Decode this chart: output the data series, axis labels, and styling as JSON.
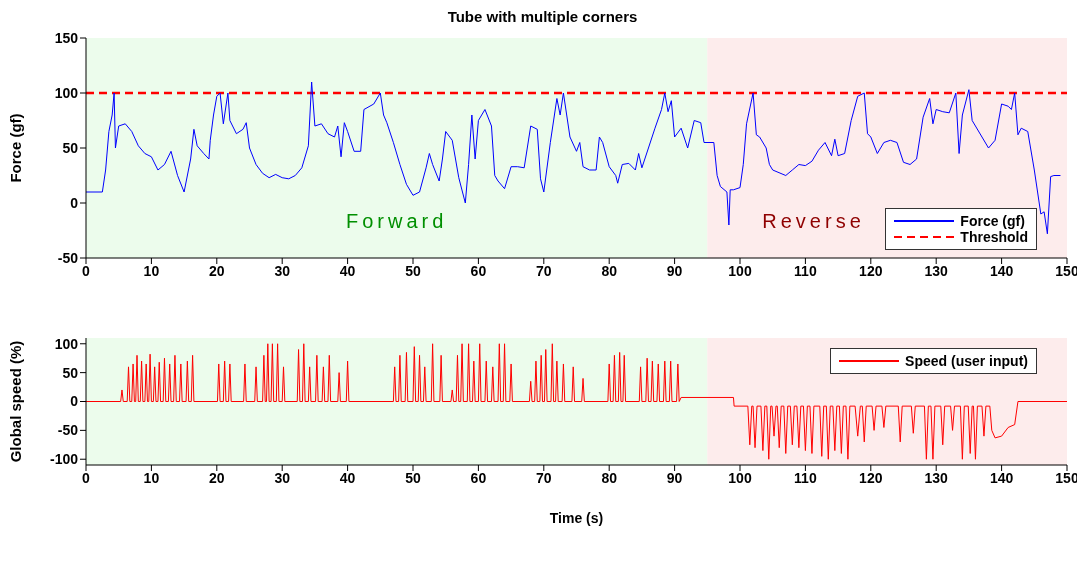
{
  "chart_data": [
    {
      "type": "line",
      "title": "Tube with multiple corners",
      "ylabel": "Force (gf)",
      "xlim": [
        0,
        150
      ],
      "xticks": [
        0,
        10,
        20,
        30,
        40,
        50,
        60,
        70,
        80,
        90,
        100,
        110,
        120,
        130,
        140,
        150
      ],
      "ylim": [
        -50,
        150
      ],
      "yticks": [
        -50,
        0,
        50,
        100,
        150
      ],
      "legend": "bottom right",
      "marker": "none",
      "line_style": "solid",
      "series": [
        {
          "name": "Force (gf)",
          "color": "#0000ff",
          "x": [
            0,
            2.5,
            3,
            3.5,
            4,
            4.3,
            4.5,
            5,
            6,
            7,
            8,
            9,
            10,
            11,
            12,
            13,
            14,
            15,
            16,
            16.5,
            17,
            18,
            18.8,
            19,
            19.5,
            20,
            20.5,
            21,
            21.7,
            22,
            23,
            24,
            24.5,
            25,
            26,
            27,
            28,
            29,
            30,
            31,
            32,
            33,
            34,
            34.5,
            35,
            36,
            37,
            38,
            38.5,
            39,
            39.5,
            40,
            41,
            42,
            42.5,
            44,
            45,
            45.5,
            46,
            47,
            48,
            49,
            50,
            51,
            52,
            52.5,
            53,
            54,
            54.5,
            55,
            56,
            57,
            58,
            58.5,
            59,
            59.5,
            60,
            61,
            62,
            62.5,
            63,
            64,
            65,
            66,
            67,
            68,
            69,
            69.5,
            70,
            71,
            72,
            72.5,
            73,
            74,
            75,
            75.5,
            76,
            77,
            78,
            78.5,
            79,
            80,
            81,
            81.3,
            82,
            83,
            84,
            84.5,
            85,
            86,
            87,
            88,
            88.5,
            89,
            89.5,
            90,
            91,
            92,
            93,
            94,
            94.5,
            96,
            96.5,
            97,
            98,
            98.3,
            98.5,
            99,
            100,
            100.5,
            101,
            102,
            102.5,
            103,
            104,
            104.5,
            105,
            107,
            108,
            109,
            110,
            111,
            112,
            113,
            114,
            114.5,
            115,
            116,
            117,
            118,
            119,
            119.5,
            120,
            121,
            122,
            123,
            124,
            125,
            126,
            127,
            128,
            129,
            129.5,
            130,
            131,
            132,
            133,
            133.5,
            134,
            135,
            135.5,
            136,
            137,
            138,
            139,
            140,
            141,
            141.5,
            142,
            142.5,
            143,
            144,
            145,
            146,
            146.5,
            147,
            147.5,
            148,
            149
          ],
          "values": [
            10,
            10,
            30,
            65,
            80,
            100,
            50,
            70,
            72,
            65,
            52,
            45,
            42,
            30,
            35,
            47,
            25,
            10,
            40,
            67,
            52,
            45,
            40,
            57,
            80,
            97,
            100,
            72,
            100,
            75,
            63,
            67,
            73,
            50,
            35,
            27,
            23,
            26,
            23,
            22,
            25,
            32,
            52,
            110,
            70,
            72,
            63,
            60,
            70,
            42,
            73,
            65,
            47,
            47,
            85,
            90,
            100,
            80,
            73,
            55,
            35,
            17,
            7,
            10,
            32,
            45,
            35,
            20,
            40,
            65,
            57,
            23,
            0,
            35,
            80,
            40,
            75,
            85,
            70,
            25,
            20,
            13,
            33,
            33,
            32,
            70,
            67,
            22,
            10,
            55,
            95,
            80,
            100,
            60,
            47,
            55,
            33,
            30,
            30,
            60,
            55,
            33,
            25,
            18,
            35,
            36,
            30,
            45,
            32,
            50,
            68,
            85,
            100,
            83,
            93,
            60,
            68,
            50,
            75,
            73,
            55,
            55,
            25,
            15,
            10,
            -20,
            12,
            12,
            14,
            35,
            72,
            100,
            62,
            60,
            50,
            35,
            30,
            25,
            30,
            35,
            34,
            38,
            48,
            55,
            43,
            58,
            43,
            45,
            75,
            97,
            100,
            63,
            60,
            45,
            55,
            57,
            55,
            37,
            35,
            40,
            78,
            95,
            72,
            85,
            83,
            82,
            100,
            45,
            80,
            103,
            75,
            70,
            60,
            50,
            57,
            90,
            88,
            85,
            100,
            62,
            68,
            65,
            30,
            -10,
            -8,
            -28,
            24,
            25,
            25
          ]
        }
      ],
      "ref_lines": [
        {
          "axis": "y",
          "value": 100,
          "label": "Threshold",
          "color": "#ff0000",
          "line_style": "dashed"
        }
      ],
      "bands": [
        {
          "axis": "x",
          "from": 0,
          "to": 95,
          "label": "Forward",
          "color": "#ecfcec"
        },
        {
          "axis": "x",
          "from": 95,
          "to": 150,
          "label": "Reverse",
          "color": "#fdecec"
        }
      ]
    },
    {
      "type": "line",
      "xlabel": "Time (s)",
      "ylabel": "Global speed (%)",
      "xlim": [
        0,
        150
      ],
      "xticks": [
        0,
        10,
        20,
        30,
        40,
        50,
        60,
        70,
        80,
        90,
        100,
        110,
        120,
        130,
        140,
        150
      ],
      "ylim": [
        -110,
        110
      ],
      "yticks": [
        -100,
        -50,
        0,
        50,
        100
      ],
      "legend": "top right",
      "marker": "none",
      "line_style": "solid",
      "series": [
        {
          "name": "Speed (user input)",
          "color": "#ff0000",
          "x": [
            0,
            5.3,
            5.5,
            5.7,
            6.3,
            6.5,
            6.7,
            7,
            7.2,
            7.4,
            7.6,
            7.8,
            8,
            8.3,
            8.5,
            8.7,
            9,
            9.2,
            9.4,
            9.6,
            9.8,
            10,
            10.3,
            10.5,
            10.7,
            11,
            11.2,
            11.4,
            11.8,
            12,
            12.2,
            12.6,
            12.8,
            13,
            13.4,
            13.6,
            13.8,
            14.3,
            14.5,
            14.7,
            15.3,
            15.5,
            15.7,
            16.1,
            16.3,
            16.5,
            20.1,
            20.3,
            20.5,
            21,
            21.2,
            21.4,
            21.8,
            22,
            22.2,
            24.1,
            24.3,
            24.5,
            25.8,
            26,
            26.2,
            27,
            27.2,
            27.4,
            27.6,
            27.8,
            28,
            28.3,
            28.5,
            28.7,
            29.1,
            29.3,
            29.5,
            30,
            30.2,
            30.4,
            32.3,
            32.5,
            32.7,
            33.1,
            33.3,
            33.5,
            34,
            34.2,
            34.4,
            35.1,
            35.3,
            35.5,
            36.1,
            36.3,
            36.5,
            37,
            37.2,
            37.4,
            38.5,
            38.7,
            38.9,
            39.8,
            40,
            40.2,
            47,
            47.2,
            47.4,
            47.8,
            48,
            48.2,
            48.8,
            49,
            49.2,
            50,
            50.2,
            50.4,
            50.8,
            51,
            51.2,
            51.6,
            51.8,
            52,
            52.8,
            53,
            53.2,
            54.1,
            54.3,
            54.5,
            55.8,
            56,
            56.2,
            56.6,
            56.8,
            57,
            57.3,
            57.5,
            57.7,
            58.3,
            58.5,
            58.7,
            59.1,
            59.3,
            59.5,
            60,
            60.2,
            60.4,
            61,
            61.2,
            61.4,
            62,
            62.2,
            62.4,
            63,
            63.2,
            63.4,
            63.8,
            64,
            64.2,
            64.8,
            65,
            65.2,
            67.8,
            68,
            68.2,
            68.6,
            68.8,
            69,
            69.4,
            69.6,
            69.8,
            70.1,
            70.3,
            70.5,
            71.1,
            71.3,
            71.5,
            71.8,
            72,
            72.2,
            72.8,
            73,
            73.2,
            74.3,
            74.5,
            74.7,
            75.8,
            76,
            76.2,
            79.8,
            80,
            80.2,
            80.6,
            80.8,
            81,
            81.4,
            81.6,
            81.8,
            82.1,
            82.3,
            82.5,
            84.6,
            84.8,
            85,
            85.6,
            85.8,
            86,
            86.4,
            86.6,
            86.8,
            87.3,
            87.5,
            87.7,
            88.3,
            88.5,
            88.7,
            89.2,
            89.4,
            89.6,
            90.3,
            90.5,
            90.7,
            91,
            99,
            99.1,
            101.2,
            101.5,
            101.8,
            102,
            102.3,
            102.6,
            103.2,
            103.5,
            103.8,
            104.1,
            104.4,
            104.7,
            104.9,
            105.2,
            105.5,
            105.7,
            106,
            106.3,
            106.7,
            107,
            107.3,
            107.7,
            108,
            108.3,
            108.7,
            109,
            109.3,
            109.7,
            110,
            110.3,
            110.7,
            111,
            111.3,
            112.2,
            112.5,
            112.8,
            113.2,
            113.5,
            113.8,
            114.2,
            114.5,
            114.8,
            115.2,
            115.5,
            115.8,
            116.2,
            116.5,
            116.8,
            117.6,
            118,
            118.4,
            118.7,
            119,
            119.3,
            120.2,
            120.5,
            120.8,
            121.7,
            122,
            122.3,
            124.2,
            124.5,
            124.8,
            126.2,
            126.5,
            126.8,
            128.2,
            128.5,
            128.8,
            129.2,
            129.5,
            129.8,
            130.7,
            131,
            131.3,
            132.2,
            132.5,
            132.8,
            133.7,
            134,
            134.3,
            134.9,
            135.2,
            135.5,
            135.7,
            136,
            136.3,
            137,
            137.3,
            137.6,
            138.2,
            138.5,
            139,
            140,
            141,
            142,
            142.5,
            150
          ],
          "values": [
            0,
            0,
            20,
            0,
            0,
            60,
            0,
            0,
            65,
            0,
            0,
            80,
            0,
            0,
            70,
            0,
            0,
            65,
            0,
            0,
            82,
            0,
            0,
            60,
            0,
            0,
            68,
            0,
            0,
            75,
            0,
            0,
            65,
            0,
            0,
            80,
            0,
            0,
            65,
            0,
            0,
            70,
            0,
            0,
            80,
            0,
            0,
            65,
            0,
            0,
            70,
            0,
            0,
            65,
            0,
            0,
            65,
            0,
            0,
            60,
            0,
            0,
            80,
            0,
            0,
            100,
            0,
            0,
            100,
            0,
            0,
            100,
            0,
            0,
            60,
            0,
            0,
            90,
            0,
            0,
            100,
            0,
            0,
            60,
            0,
            0,
            80,
            0,
            0,
            60,
            0,
            0,
            80,
            0,
            0,
            50,
            0,
            0,
            70,
            0,
            0,
            60,
            0,
            0,
            80,
            0,
            0,
            85,
            0,
            0,
            95,
            0,
            0,
            80,
            0,
            0,
            60,
            0,
            0,
            100,
            0,
            0,
            80,
            0,
            0,
            20,
            0,
            0,
            80,
            0,
            0,
            100,
            0,
            0,
            100,
            0,
            0,
            70,
            0,
            0,
            100,
            0,
            0,
            70,
            0,
            0,
            60,
            0,
            0,
            100,
            0,
            0,
            100,
            0,
            0,
            65,
            0,
            0,
            35,
            0,
            0,
            70,
            0,
            0,
            80,
            0,
            0,
            90,
            0,
            0,
            100,
            0,
            0,
            70,
            0,
            0,
            65,
            0,
            0,
            60,
            0,
            0,
            40,
            0,
            0,
            65,
            0,
            0,
            80,
            0,
            0,
            85,
            0,
            0,
            80,
            0,
            0,
            60,
            0,
            0,
            75,
            0,
            0,
            70,
            0,
            0,
            65,
            0,
            0,
            70,
            0,
            0,
            70,
            0,
            0,
            65,
            0,
            7,
            7,
            -8,
            -8,
            -75,
            -8,
            -8,
            -80,
            -8,
            -8,
            -85,
            -8,
            -8,
            -100,
            -8,
            -8,
            -60,
            -8,
            -8,
            -80,
            -8,
            -8,
            -90,
            -8,
            -8,
            -75,
            -8,
            -8,
            -80,
            -8,
            -8,
            -85,
            -8,
            -8,
            -90,
            -8,
            -8,
            -95,
            -8,
            -8,
            -100,
            -8,
            -8,
            -85,
            -8,
            -8,
            -90,
            -8,
            -8,
            -100,
            -8,
            -8,
            -60,
            -8,
            -8,
            -70,
            -8,
            -8,
            -50,
            -8,
            -8,
            -45,
            -8,
            -8,
            -70,
            -8,
            -8,
            -55,
            -8,
            -8,
            -100,
            -8,
            -8,
            -100,
            -8,
            -8,
            -75,
            -8,
            -8,
            -50,
            -8,
            -8,
            -100,
            -8,
            -8,
            -90,
            -8,
            -8,
            -100,
            -8,
            -8,
            -60,
            -8,
            -8,
            -50,
            -63,
            -60,
            -45,
            -40,
            0,
            0
          ]
        }
      ],
      "bands": [
        {
          "axis": "x",
          "from": 0,
          "to": 95,
          "color": "#ecfcec"
        },
        {
          "axis": "x",
          "from": 95,
          "to": 150,
          "color": "#fdecec"
        }
      ]
    }
  ]
}
